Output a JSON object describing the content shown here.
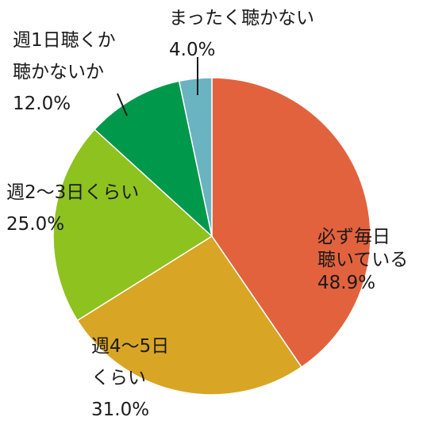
{
  "chart_data": {
    "type": "pie",
    "slices": [
      {
        "label_lines": [
          "必ず毎日",
          "聴いている"
        ],
        "value": 48.9,
        "value_label": "48.9%",
        "color": "#e2623e"
      },
      {
        "label_lines": [
          "週4～5日",
          "くらい"
        ],
        "value": 31.0,
        "value_label": "31.0%",
        "color": "#d9a524"
      },
      {
        "label_lines": [
          "週2～3日くらい"
        ],
        "value": 25.0,
        "value_label": "25.0%",
        "color": "#8dc21f"
      },
      {
        "label_lines": [
          "週1日聴くか",
          "聴かないか"
        ],
        "value": 12.0,
        "value_label": "12.0%",
        "color": "#00984a"
      },
      {
        "label_lines": [
          "まったく聴かない"
        ],
        "value": 4.0,
        "value_label": "4.0%",
        "color": "#6ab3c1"
      }
    ]
  }
}
